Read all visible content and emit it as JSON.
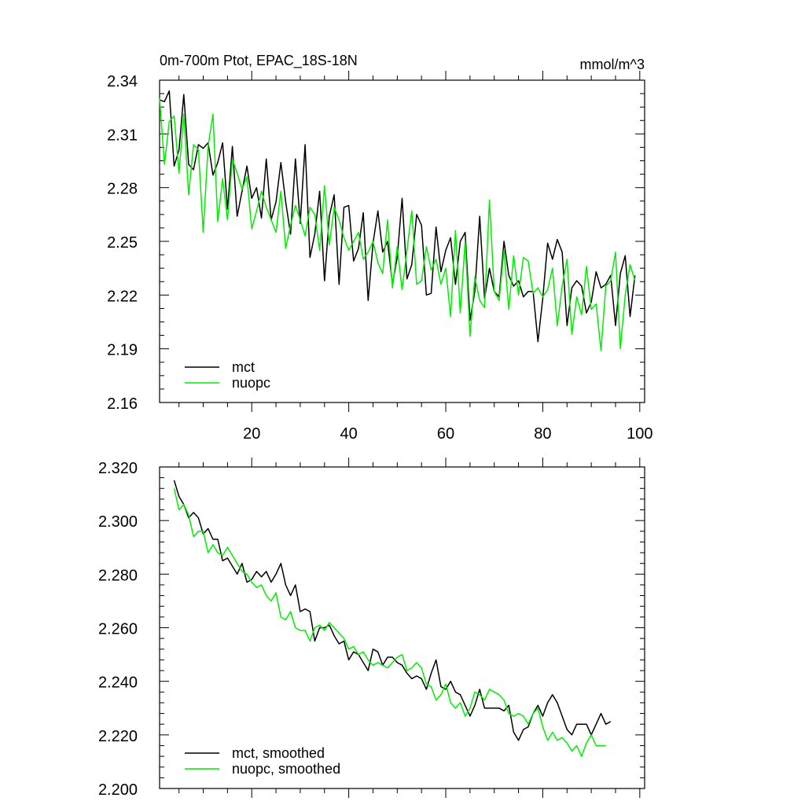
{
  "chart_data": [
    {
      "type": "line",
      "title": "0m-700m Ptot, EPAC_18S-18N",
      "units": "mmol/m^3",
      "xlim": [
        1,
        101
      ],
      "ylim": [
        2.16,
        2.34
      ],
      "xticks": [
        20,
        40,
        60,
        80,
        100
      ],
      "xtick_labels": [
        "20",
        "40",
        "60",
        "80",
        "100"
      ],
      "yticks": [
        2.16,
        2.19,
        2.22,
        2.25,
        2.28,
        2.31,
        2.34
      ],
      "ytick_labels": [
        "2.16",
        "2.19",
        "2.22",
        "2.25",
        "2.28",
        "2.31",
        "2.34"
      ],
      "legend": "bottom-left",
      "x_start": 1,
      "series": [
        {
          "name": "mct",
          "color": "#000000",
          "values": [
            2.329,
            2.328,
            2.334,
            2.292,
            2.301,
            2.332,
            2.293,
            2.29,
            2.304,
            2.302,
            2.305,
            2.287,
            2.294,
            2.305,
            2.268,
            2.303,
            2.264,
            2.278,
            2.292,
            2.274,
            2.28,
            2.263,
            2.296,
            2.262,
            2.272,
            2.294,
            2.272,
            2.254,
            2.296,
            2.26,
            2.304,
            2.241,
            2.254,
            2.278,
            2.228,
            2.264,
            2.276,
            2.226,
            2.269,
            2.27,
            2.239,
            2.246,
            2.266,
            2.217,
            2.249,
            2.267,
            2.244,
            2.25,
            2.226,
            2.241,
            2.274,
            2.229,
            2.237,
            2.265,
            2.259,
            2.22,
            2.221,
            2.258,
            2.233,
            2.245,
            2.252,
            2.226,
            2.25,
            2.255,
            2.206,
            2.222,
            2.264,
            2.218,
            2.235,
            2.222,
            2.219,
            2.25,
            2.231,
            2.225,
            2.228,
            2.219,
            2.222,
            2.222,
            2.194,
            2.218,
            2.249,
            2.24,
            2.251,
            2.244,
            2.203,
            2.224,
            2.228,
            2.225,
            2.21,
            2.216,
            2.233,
            2.224,
            2.226,
            2.231,
            2.203,
            2.232,
            2.242,
            2.208,
            2.231
          ]
        },
        {
          "name": "nuopc",
          "color": "#00ee00",
          "values": [
            2.33,
            2.293,
            2.317,
            2.32,
            2.288,
            2.321,
            2.276,
            2.304,
            2.301,
            2.255,
            2.303,
            2.321,
            2.261,
            2.285,
            2.262,
            2.296,
            2.288,
            2.279,
            2.286,
            2.257,
            2.267,
            2.278,
            2.269,
            2.262,
            2.255,
            2.278,
            2.246,
            2.259,
            2.27,
            2.262,
            2.253,
            2.269,
            2.265,
            2.245,
            2.281,
            2.248,
            2.269,
            2.262,
            2.252,
            2.245,
            2.25,
            2.255,
            2.24,
            2.244,
            2.25,
            2.238,
            2.232,
            2.262,
            2.224,
            2.247,
            2.223,
            2.245,
            2.267,
            2.226,
            2.228,
            2.247,
            2.234,
            2.24,
            2.226,
            2.235,
            2.208,
            2.256,
            2.21,
            2.25,
            2.197,
            2.23,
            2.217,
            2.213,
            2.273,
            2.222,
            2.217,
            2.245,
            2.212,
            2.242,
            2.22,
            2.241,
            2.239,
            2.221,
            2.224,
            2.219,
            2.223,
            2.235,
            2.203,
            2.225,
            2.24,
            2.198,
            2.219,
            2.209,
            2.236,
            2.212,
            2.215,
            2.189,
            2.225,
            2.228,
            2.244,
            2.19,
            2.22,
            2.237,
            2.228
          ]
        }
      ]
    },
    {
      "type": "line",
      "title": "",
      "xlim": [
        1,
        101
      ],
      "ylim": [
        2.2,
        2.32
      ],
      "xticks": [
        20,
        40,
        60,
        80,
        100
      ],
      "yticks": [
        2.2,
        2.22,
        2.24,
        2.26,
        2.28,
        2.3,
        2.32
      ],
      "ytick_labels": [
        "2.200",
        "2.220",
        "2.240",
        "2.260",
        "2.280",
        "2.300",
        "2.320"
      ],
      "legend": "bottom-left",
      "x_start": 4,
      "series": [
        {
          "name": "mct, smoothed",
          "color": "#000000",
          "values": [
            2.315,
            2.309,
            2.306,
            2.301,
            2.303,
            2.301,
            2.295,
            2.297,
            2.293,
            2.293,
            2.285,
            2.286,
            2.283,
            2.28,
            2.284,
            2.277,
            2.278,
            2.281,
            2.279,
            2.281,
            2.277,
            2.28,
            2.284,
            2.276,
            2.272,
            2.276,
            2.266,
            2.267,
            2.266,
            2.255,
            2.26,
            2.26,
            2.261,
            2.257,
            2.254,
            2.255,
            2.248,
            2.251,
            2.25,
            2.247,
            2.244,
            2.252,
            2.251,
            2.246,
            2.249,
            2.249,
            2.247,
            2.246,
            2.243,
            2.241,
            2.242,
            2.241,
            2.237,
            2.243,
            2.248,
            2.238,
            2.237,
            2.24,
            2.236,
            2.235,
            2.231,
            2.227,
            2.231,
            2.237,
            2.23,
            2.23,
            2.23,
            2.23,
            2.229,
            2.231,
            2.221,
            2.218,
            2.222,
            2.223,
            2.228,
            2.231,
            2.227,
            2.232,
            2.235,
            2.232,
            2.227,
            2.222,
            2.22,
            2.224,
            2.224,
            2.224,
            2.22,
            2.224,
            2.228,
            2.224,
            2.225
          ]
        },
        {
          "name": "nuopc, smoothed",
          "color": "#00ee00",
          "values": [
            2.312,
            2.304,
            2.306,
            2.302,
            2.294,
            2.296,
            2.296,
            2.288,
            2.291,
            2.288,
            2.287,
            2.29,
            2.287,
            2.284,
            2.281,
            2.28,
            2.277,
            2.275,
            2.276,
            2.272,
            2.27,
            2.273,
            2.264,
            2.263,
            2.266,
            2.26,
            2.259,
            2.259,
            2.255,
            2.26,
            2.261,
            2.259,
            2.262,
            2.26,
            2.258,
            2.256,
            2.252,
            2.253,
            2.25,
            2.251,
            2.248,
            2.246,
            2.247,
            2.246,
            2.245,
            2.247,
            2.249,
            2.25,
            2.244,
            2.245,
            2.247,
            2.245,
            2.239,
            2.238,
            2.233,
            2.235,
            2.239,
            2.232,
            2.23,
            2.232,
            2.227,
            2.23,
            2.236,
            2.235,
            2.233,
            2.237,
            2.236,
            2.235,
            2.233,
            2.228,
            2.227,
            2.228,
            2.227,
            2.224,
            2.228,
            2.23,
            2.223,
            2.218,
            2.221,
            2.218,
            2.219,
            2.217,
            2.214,
            2.216,
            2.212,
            2.217,
            2.22,
            2.216,
            2.216,
            2.216
          ]
        }
      ]
    }
  ]
}
